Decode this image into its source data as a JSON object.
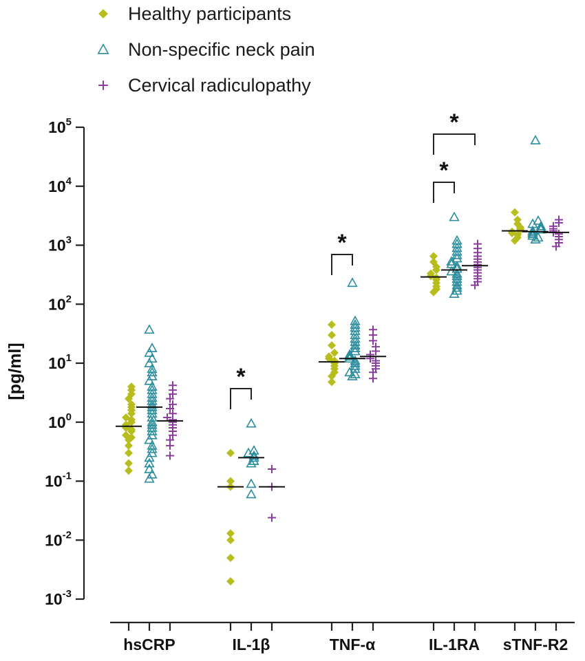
{
  "chart_data": {
    "type": "scatter",
    "ylabel": "[pg/ml]",
    "yscale": "log",
    "ylim": [
      0.001,
      100000
    ],
    "yticks": [
      {
        "base": "10",
        "exp": "-3",
        "value": 0.001
      },
      {
        "base": "10",
        "exp": "-2",
        "value": 0.01
      },
      {
        "base": "10",
        "exp": "-1",
        "value": 0.1
      },
      {
        "base": "10",
        "exp": "0",
        "value": 1
      },
      {
        "base": "10",
        "exp": "1",
        "value": 10
      },
      {
        "base": "10",
        "exp": "2",
        "value": 100
      },
      {
        "base": "10",
        "exp": "3",
        "value": 1000
      },
      {
        "base": "10",
        "exp": "4",
        "value": 10000
      },
      {
        "base": "10",
        "exp": "5",
        "value": 100000
      }
    ],
    "categories": [
      "hsCRP",
      "IL-1β",
      "TNF-α",
      "IL-1RA",
      "sTNF-R2"
    ],
    "legend_position": "top-left",
    "series": [
      {
        "name": "Healthy participants",
        "marker": "diamond",
        "color": "#b8bd1e",
        "medians": [
          0.85,
          0.08,
          10.5,
          290,
          1750
        ],
        "values": [
          [
            0.15,
            0.2,
            0.3,
            0.4,
            0.5,
            0.55,
            0.6,
            0.7,
            0.75,
            0.8,
            0.9,
            1.0,
            1.1,
            1.2,
            1.4,
            1.6,
            1.8,
            2.0,
            2.5,
            3.0,
            3.5,
            4.0
          ],
          [
            0.002,
            0.005,
            0.01,
            0.013,
            0.08,
            0.1,
            0.3
          ],
          [
            4.8,
            6.0,
            7.0,
            8.0,
            9.0,
            10.0,
            11.0,
            12.0,
            13.0,
            15.0,
            20.0,
            30.0,
            45.0
          ],
          [
            160,
            180,
            200,
            230,
            260,
            280,
            300,
            330,
            380,
            430,
            520,
            650
          ],
          [
            1200,
            1350,
            1500,
            1600,
            1700,
            1800,
            1900,
            2000,
            2300,
            2700,
            3600
          ]
        ]
      },
      {
        "name": "Non-specific neck pain",
        "marker": "triangle",
        "color": "#2a8c9c",
        "medians": [
          1.8,
          0.25,
          12.0,
          380,
          1700
        ],
        "values": [
          [
            0.11,
            0.13,
            0.16,
            0.2,
            0.25,
            0.3,
            0.35,
            0.4,
            0.5,
            0.6,
            0.7,
            0.8,
            0.9,
            1.0,
            1.2,
            1.4,
            1.6,
            1.8,
            2.0,
            2.3,
            2.6,
            3.0,
            3.5,
            4.0,
            5.0,
            6.0,
            7.0,
            8.0,
            10.0,
            12.0,
            15.0,
            18.0,
            37.0
          ],
          [
            0.06,
            0.09,
            0.2,
            0.22,
            0.25,
            0.27,
            0.3,
            0.33,
            0.95
          ],
          [
            6.0,
            6.5,
            7.0,
            8.0,
            9.0,
            10.0,
            11.0,
            12.0,
            13.0,
            14.0,
            16.0,
            18.0,
            20.0,
            23.0,
            26.0,
            30.0,
            35.0,
            40.0,
            45.0,
            52.0,
            230.0
          ],
          [
            150,
            170,
            190,
            210,
            240,
            270,
            300,
            330,
            360,
            400,
            440,
            480,
            530,
            600,
            680,
            780,
            900,
            1050,
            1200,
            3000
          ],
          [
            1250,
            1350,
            1450,
            1550,
            1650,
            1750,
            1850,
            1950,
            2100,
            2300,
            2600,
            60000
          ]
        ]
      },
      {
        "name": "Cervical radiculopathy",
        "marker": "plus",
        "color": "#8a3c9c",
        "medians": [
          1.05,
          0.08,
          13.0,
          450,
          1650
        ],
        "values": [
          [
            0.27,
            0.4,
            0.5,
            0.6,
            0.7,
            0.8,
            0.9,
            1.0,
            1.1,
            1.2,
            1.4,
            1.7,
            2.0,
            2.5,
            3.0,
            3.5,
            4.2
          ],
          [
            0.024,
            0.08,
            0.16
          ],
          [
            5.5,
            7.0,
            8.0,
            9.0,
            10.0,
            11.0,
            12.0,
            13.0,
            14.0,
            16.0,
            19.0,
            24.0,
            30.0,
            37.0
          ],
          [
            210,
            240,
            270,
            300,
            340,
            380,
            420,
            470,
            520,
            580,
            650,
            750,
            880,
            1050
          ],
          [
            950,
            1100,
            1250,
            1400,
            1550,
            1650,
            1750,
            1900,
            2100,
            2400,
            2700
          ]
        ]
      }
    ],
    "annotations": [
      {
        "label": "*",
        "category": "IL-1β",
        "between": [
          "Healthy participants",
          "Non-specific neck pain"
        ]
      },
      {
        "label": "*",
        "category": "TNF-α",
        "between": [
          "Healthy participants",
          "Non-specific neck pain"
        ]
      },
      {
        "label": "*",
        "category": "IL-1RA",
        "between": [
          "Healthy participants",
          "Non-specific neck pain"
        ]
      },
      {
        "label": "*",
        "category": "IL-1RA",
        "between": [
          "Healthy participants",
          "Cervical radiculopathy"
        ]
      }
    ]
  }
}
